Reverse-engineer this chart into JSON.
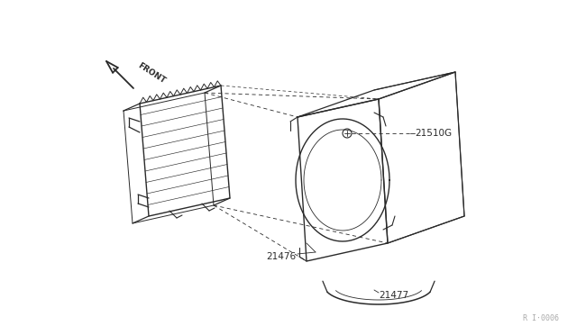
{
  "bg_color": "#ffffff",
  "line_color": "#2a2a2a",
  "label_color": "#2a2a2a",
  "watermark": "R I·0006",
  "fig_w": 6.4,
  "fig_h": 3.72,
  "dpi": 100
}
